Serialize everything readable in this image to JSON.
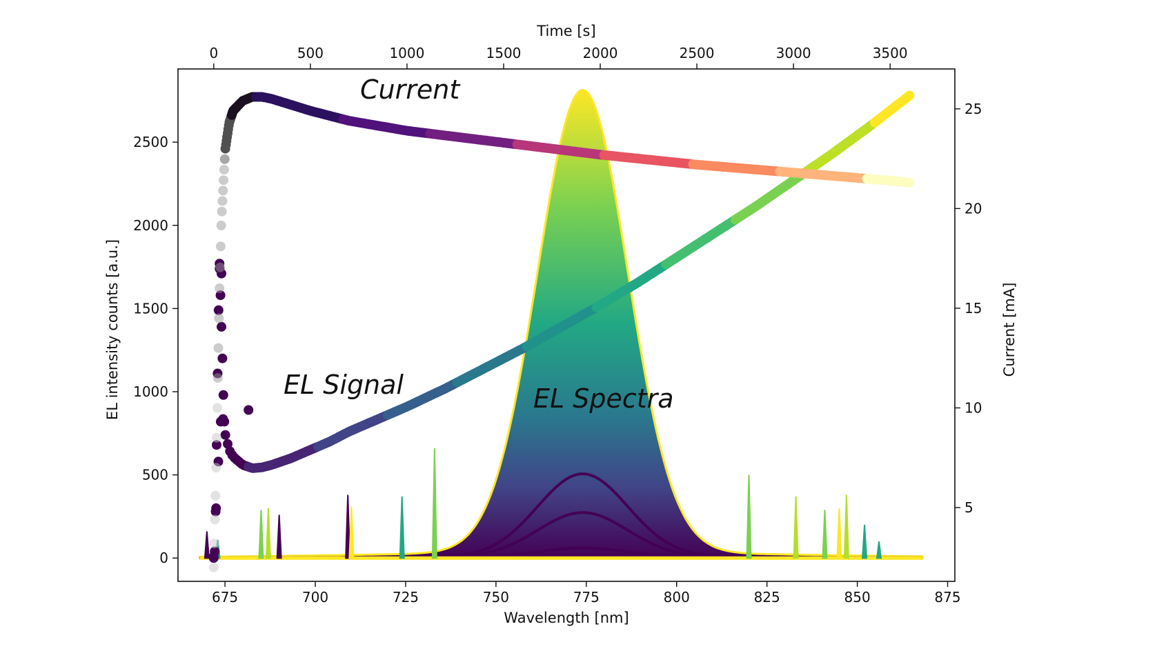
{
  "chart_data": {
    "type": "scatter",
    "title": "",
    "xlabel_bottom": "Wavelength [nm]",
    "xlabel_top": "Time [s]",
    "ylabel_left": "EL intensity counts [a.u.]",
    "ylabel_right": "Current [mA]",
    "xlim_bottom": [
      662,
      877
    ],
    "xticks_bottom": [
      "675",
      "700",
      "725",
      "750",
      "775",
      "800",
      "825",
      "850",
      "875"
    ],
    "xlim_top": [
      -185,
      3835
    ],
    "xticks_top": [
      "0",
      "500",
      "1000",
      "1500",
      "2000",
      "2500",
      "3000",
      "3500"
    ],
    "ylim_left": [
      -140,
      2940
    ],
    "yticks_left": [
      "0",
      "500",
      "1000",
      "1500",
      "2000",
      "2500"
    ],
    "ylim_right": [
      1.3,
      27.0
    ],
    "yticks_right": [
      "5",
      "10",
      "15",
      "20",
      "25"
    ],
    "grid": false,
    "annotations": {
      "current": "Current",
      "el_signal": "EL Signal",
      "el_spectra": "EL Spectra"
    },
    "series": [
      {
        "axis": "top-left",
        "x": [
          0,
          20,
          40,
          60,
          80,
          100,
          150,
          200,
          250,
          300,
          400,
          500,
          600,
          700,
          800,
          900,
          1000,
          1200,
          1400,
          1600,
          1800,
          2000,
          2200,
          2400,
          2600,
          2800,
          3000,
          3200,
          3400,
          3600
        ],
        "y": [
          0,
          500,
          900,
          740,
          650,
          610,
          560,
          540,
          545,
          560,
          600,
          650,
          700,
          760,
          810,
          860,
          910,
          1020,
          1140,
          1260,
          1390,
          1520,
          1660,
          1810,
          1960,
          2110,
          2270,
          2430,
          2600,
          2780
        ]
      },
      {
        "axis": "top-right",
        "x": [
          0,
          10,
          20,
          30,
          40,
          60,
          80,
          100,
          150,
          200,
          250,
          300,
          400,
          500,
          700,
          1000,
          1500,
          2000,
          2500,
          3000,
          3500,
          3600
        ],
        "y": [
          2.0,
          6.0,
          11.0,
          16.0,
          19.5,
          23.0,
          24.3,
          24.9,
          25.4,
          25.6,
          25.6,
          25.5,
          25.2,
          24.9,
          24.4,
          23.9,
          23.3,
          22.7,
          22.2,
          21.8,
          21.4,
          21.3
        ]
      },
      {
        "axis": "bottom-left",
        "x": [
          668,
          760,
          764,
          768,
          772,
          774,
          776,
          780,
          784,
          788,
          868
        ],
        "peak": 2780,
        "peak_wavelength": 774,
        "stacked_peaks": [
          500,
          270,
          60,
          20
        ]
      }
    ]
  }
}
